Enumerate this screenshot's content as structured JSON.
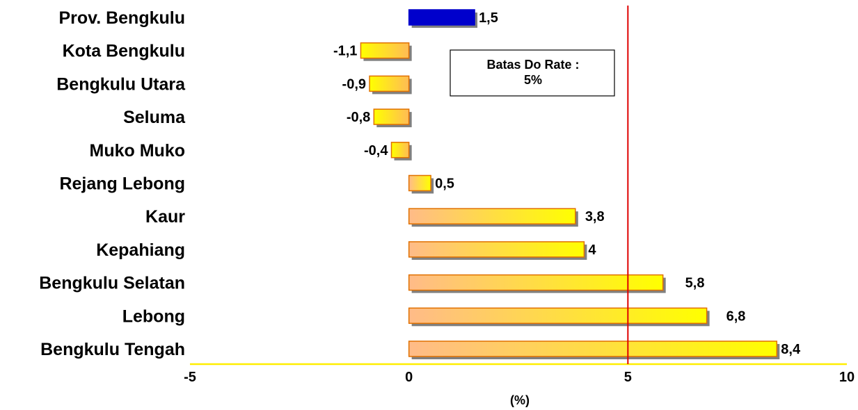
{
  "chart_data": {
    "type": "bar",
    "orientation": "horizontal",
    "categories": [
      "Prov. Bengkulu",
      "Kota Bengkulu",
      "Bengkulu Utara",
      "Seluma",
      "Muko Muko",
      "Rejang Lebong",
      "Kaur",
      "Kepahiang",
      "Bengkulu Selatan",
      "Lebong",
      "Bengkulu Tengah"
    ],
    "values": [
      1.5,
      -1.1,
      -0.9,
      -0.8,
      -0.4,
      0.5,
      3.8,
      4,
      5.8,
      6.8,
      8.4
    ],
    "value_labels": [
      "1,5",
      "-1,1",
      "-0,9",
      "-0,8",
      "-0,4",
      "0,5",
      "3,8",
      "4",
      "5,8",
      "6,8",
      "8,4"
    ],
    "highlight_category": "Prov. Bengkulu",
    "xlim": [
      -5,
      10
    ],
    "xticks": [
      -5,
      0,
      5,
      10
    ],
    "xtick_labels": [
      "-5",
      "0",
      "5",
      "10"
    ],
    "xlabel": "(%)",
    "title": "",
    "ylabel": "",
    "reference_line": {
      "x": 5,
      "color": "#e00000"
    },
    "annotation": {
      "lines": [
        "Batas Do Rate :",
        "5%"
      ]
    },
    "grid": false,
    "legend": false,
    "colors": {
      "highlight_bar": "#0000cc",
      "negative_bar_left": "#ffff00",
      "negative_bar_right": "#ffbb55",
      "positive_bar_left": "#ffbb88",
      "positive_bar_right": "#ffff00",
      "bar_outline": "#e07000",
      "axis_line": "#ffee00",
      "reference_line": "#e00000"
    }
  }
}
